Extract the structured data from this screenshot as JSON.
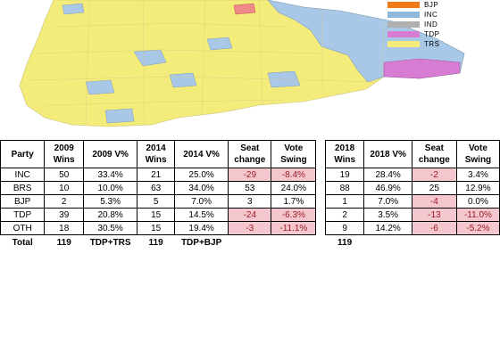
{
  "legend": [
    {
      "label": "BJP",
      "color": "#f07a1a"
    },
    {
      "label": "INC",
      "color": "#8fb8dd"
    },
    {
      "label": "IND",
      "color": "#b0b0b0"
    },
    {
      "label": "TDP",
      "color": "#d77bd3"
    },
    {
      "label": "TRS",
      "color": "#f4ec7a"
    }
  ],
  "map": {
    "base_color": "#f4ec7a",
    "inc_color": "#a9c8e8",
    "tdp_color": "#d77bd3",
    "bjp_color": "#f08a8a"
  },
  "table": {
    "headers": [
      "Party",
      "2009 Wins",
      "2009 V%",
      "2014 Wins",
      "2014 V%",
      "Seat change",
      "Vote Swing",
      "2018 Wins",
      "2018 V%",
      "Seat change",
      "Vote Swing"
    ],
    "rows": [
      {
        "party": "INC",
        "w2009": "50",
        "v2009": "33.4%",
        "w2014": "21",
        "v2014": "25.0%",
        "sc1": "-29",
        "vs1": "-8.4%",
        "w2018": "19",
        "v2018": "28.4%",
        "sc2": "-2",
        "vs2": "3.4%"
      },
      {
        "party": "BRS",
        "w2009": "10",
        "v2009": "10.0%",
        "w2014": "63",
        "v2014": "34.0%",
        "sc1": "53",
        "vs1": "24.0%",
        "w2018": "88",
        "v2018": "46.9%",
        "sc2": "25",
        "vs2": "12.9%"
      },
      {
        "party": "BJP",
        "w2009": "2",
        "v2009": "5.3%",
        "w2014": "5",
        "v2014": "7.0%",
        "sc1": "3",
        "vs1": "1.7%",
        "w2018": "1",
        "v2018": "7.0%",
        "sc2": "-4",
        "vs2": "0.0%"
      },
      {
        "party": "TDP",
        "w2009": "39",
        "v2009": "20.8%",
        "w2014": "15",
        "v2014": "14.5%",
        "sc1": "-24",
        "vs1": "-6.3%",
        "w2018": "2",
        "v2018": "3.5%",
        "sc2": "-13",
        "vs2": "-11.0%"
      },
      {
        "party": "OTH",
        "w2009": "18",
        "v2009": "30.5%",
        "w2014": "15",
        "v2014": "19.4%",
        "sc1": "-3",
        "vs1": "-11.1%",
        "w2018": "9",
        "v2018": "14.2%",
        "sc2": "-6",
        "vs2": "-5.2%"
      }
    ],
    "total": {
      "label": "Total",
      "w2009": "119",
      "v2009": "TDP+TRS",
      "w2014": "119",
      "v2014": "TDP+BJP",
      "w2018": "119"
    }
  },
  "chart_data": {
    "type": "table",
    "columns": [
      "Party",
      "2009 Wins",
      "2009 V%",
      "2014 Wins",
      "2014 V%",
      "Seat change",
      "Vote Swing",
      "2018 Wins",
      "2018 V%",
      "Seat change",
      "Vote Swing"
    ],
    "rows": [
      [
        "INC",
        50,
        33.4,
        21,
        25.0,
        -29,
        -8.4,
        19,
        28.4,
        -2,
        3.4
      ],
      [
        "BRS",
        10,
        10.0,
        63,
        34.0,
        53,
        24.0,
        88,
        46.9,
        25,
        12.9
      ],
      [
        "BJP",
        2,
        5.3,
        5,
        7.0,
        3,
        1.7,
        1,
        7.0,
        -4,
        0.0
      ],
      [
        "TDP",
        39,
        20.8,
        15,
        14.5,
        -24,
        -6.3,
        2,
        3.5,
        -13,
        -11.0
      ],
      [
        "OTH",
        18,
        30.5,
        15,
        19.4,
        -3,
        -11.1,
        9,
        14.2,
        -6,
        -5.2
      ]
    ],
    "totals": {
      "2009": 119,
      "2014": 119,
      "2018": 119
    }
  }
}
